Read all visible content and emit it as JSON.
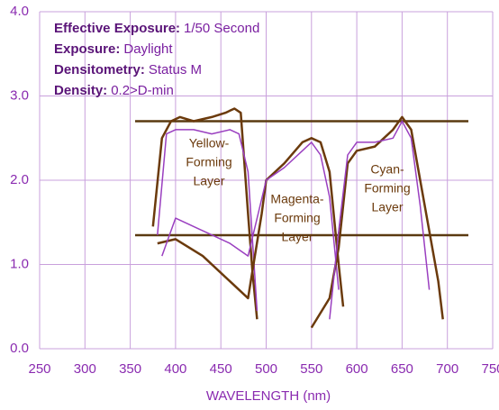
{
  "chart_data": {
    "type": "line",
    "info": [
      {
        "label": "Effective Exposure:",
        "value": "1/50 Second"
      },
      {
        "label": "Exposure:",
        "value": "Daylight"
      },
      {
        "label": "Densitometry:",
        "value": "Status M"
      },
      {
        "label": "Density:",
        "value": "0.2>D-min"
      }
    ],
    "layer_labels": [
      [
        "Yellow-",
        "Forming",
        "Layer"
      ],
      [
        "Magenta-",
        "Forming",
        "Layer"
      ],
      [
        "Cyan-",
        "Forming",
        "Layer"
      ]
    ],
    "x_label": "WAVELENGTH (nm)",
    "xlim": [
      250,
      750
    ],
    "xticks": [
      250,
      300,
      350,
      400,
      450,
      500,
      550,
      600,
      650,
      700,
      750
    ],
    "ylim": [
      0,
      4
    ],
    "yticks": [
      {
        "value": 0,
        "label": "0.0"
      },
      {
        "value": 1,
        "label": "1.0"
      },
      {
        "value": 2,
        "label": "2.0"
      },
      {
        "value": 3,
        "label": "3.0"
      },
      {
        "value": 4,
        "label": "4.0"
      }
    ],
    "grid": true,
    "series": [
      {
        "color": "#6b3a0c",
        "x": [
          375,
          385,
          395,
          405,
          420,
          440,
          455,
          465,
          472,
          480,
          485,
          490
        ],
        "values": [
          1.45,
          2.5,
          2.7,
          2.75,
          2.7,
          2.75,
          2.8,
          2.85,
          2.8,
          1.6,
          0.9,
          0.35
        ]
      },
      {
        "color": "#9a3fc0",
        "x": [
          380,
          390,
          400,
          420,
          440,
          460,
          470,
          480,
          490
        ],
        "values": [
          1.35,
          2.55,
          2.6,
          2.6,
          2.55,
          2.6,
          2.55,
          2.1,
          0.45
        ]
      },
      {
        "color": "#6b3a0c",
        "x": [
          380,
          400,
          430,
          460,
          480,
          495,
          500,
          520,
          540,
          550,
          560,
          570,
          580,
          585
        ],
        "values": [
          1.25,
          1.3,
          1.1,
          0.8,
          0.6,
          1.6,
          2.0,
          2.2,
          2.45,
          2.5,
          2.45,
          2.1,
          1.0,
          0.5
        ]
      },
      {
        "color": "#9a3fc0",
        "x": [
          385,
          400,
          430,
          460,
          480,
          500,
          520,
          540,
          550,
          560,
          570,
          580
        ],
        "values": [
          1.1,
          1.55,
          1.4,
          1.25,
          1.1,
          2.0,
          2.15,
          2.35,
          2.45,
          2.3,
          1.8,
          0.7
        ]
      },
      {
        "color": "#6b3a0c",
        "x": [
          550,
          570,
          580,
          590,
          600,
          620,
          640,
          650,
          660,
          670,
          690,
          695
        ],
        "values": [
          0.25,
          0.6,
          1.2,
          2.2,
          2.35,
          2.4,
          2.6,
          2.75,
          2.6,
          2.0,
          0.8,
          0.35
        ]
      },
      {
        "color": "#9a3fc0",
        "x": [
          570,
          580,
          590,
          600,
          620,
          640,
          650,
          660,
          670,
          680
        ],
        "values": [
          0.35,
          1.4,
          2.3,
          2.45,
          2.45,
          2.5,
          2.7,
          2.5,
          1.7,
          0.7
        ]
      }
    ]
  }
}
